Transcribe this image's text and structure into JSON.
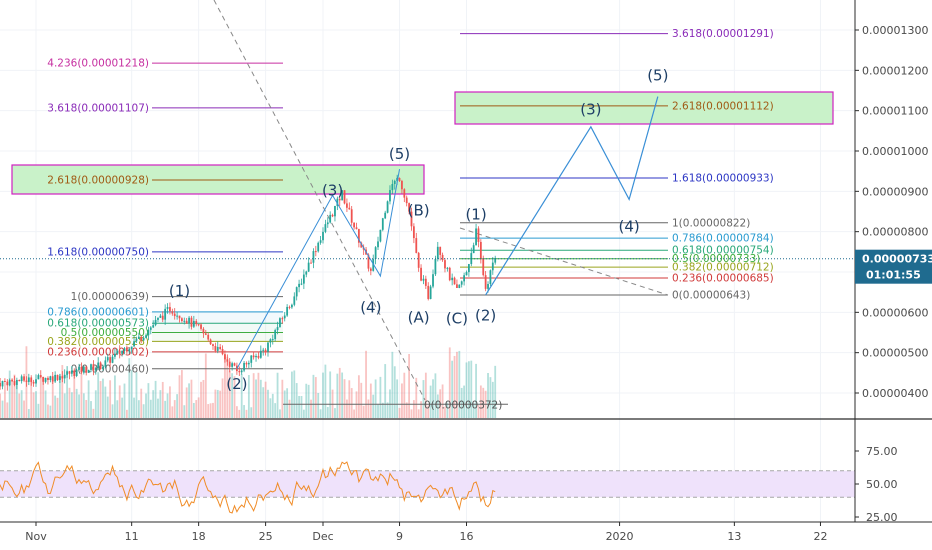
{
  "chart_data": {
    "type": "candlestick",
    "price_axis": {
      "ticks": [
        "0.00001300",
        "0.00001200",
        "0.00001100",
        "0.00001000",
        "0.00000900",
        "0.00000800",
        "0.00000700",
        "0.00000600",
        "0.00000500",
        "0.00000400"
      ],
      "tick_values": [
        1300,
        1200,
        1100,
        1000,
        900,
        800,
        700,
        600,
        500,
        400
      ],
      "current_price_label": "0.00000733",
      "current_price": 733,
      "countdown_label": "01:01:55"
    },
    "time_axis": {
      "labels": [
        "Nov",
        "11",
        "18",
        "25",
        "Dec",
        "9",
        "16",
        "2020",
        "13",
        "22"
      ],
      "dates": [
        "2019-11-01",
        "2019-11-11",
        "2019-11-18",
        "2019-11-25",
        "2019-12-01",
        "2019-12-09",
        "2019-12-16",
        "2020-01-01",
        "2020-01-13",
        "2020-01-22"
      ]
    },
    "rsi": {
      "ticks": [
        "75.00",
        "50.00",
        "25.00"
      ],
      "tick_values": [
        75,
        50,
        25
      ],
      "band": [
        40,
        60
      ]
    },
    "fib_left": [
      {
        "label": "4.236(0.00001218)",
        "value": 1218,
        "color": "#c62fa0"
      },
      {
        "label": "3.618(0.00001107)",
        "value": 1107,
        "color": "#8a2bb8"
      },
      {
        "label": "2.618(0.00000928)",
        "value": 928,
        "color": "#a05a14"
      },
      {
        "label": "1.618(0.00000750)",
        "value": 750,
        "color": "#2c36c4"
      }
    ],
    "fib_left_retrace": [
      {
        "label": "1(0.00000639)",
        "value": 639,
        "color": "#666666"
      },
      {
        "label": "0.786(0.00000601)",
        "value": 601,
        "color": "#2a9bd1"
      },
      {
        "label": "0.618(0.00000573)",
        "value": 573,
        "color": "#2aa87a"
      },
      {
        "label": "0.5(0.00000550)",
        "value": 550,
        "color": "#3fae3f"
      },
      {
        "label": "0.382(0.00000528)",
        "value": 528,
        "color": "#9aa51e"
      },
      {
        "label": "0.236(0.00000502)",
        "value": 502,
        "color": "#d03a3a"
      },
      {
        "label": "0(0.00000460)",
        "value": 460,
        "color": "#666666"
      }
    ],
    "fib_right": [
      {
        "label": "3.618(0.00001291)",
        "value": 1291,
        "color": "#8a2bb8"
      },
      {
        "label": "2.618(0.00001112)",
        "value": 1112,
        "color": "#a05a14"
      },
      {
        "label": "1.618(0.00000933)",
        "value": 933,
        "color": "#2c36c4"
      }
    ],
    "fib_right_retrace": [
      {
        "label": "1(0.00000822)",
        "value": 822,
        "color": "#666666"
      },
      {
        "label": "0.786(0.00000784)",
        "value": 784,
        "color": "#2a9bd1"
      },
      {
        "label": "0.618(0.00000754)",
        "value": 754,
        "color": "#2aa87a"
      },
      {
        "label": "0.5(0.00000733)",
        "value": 733,
        "color": "#3fae3f"
      },
      {
        "label": "0.382(0.00000712)",
        "value": 712,
        "color": "#9aa51e"
      },
      {
        "label": "0.236(0.00000685)",
        "value": 685,
        "color": "#d03a3a"
      },
      {
        "label": "0(0.00000643)",
        "value": 643,
        "color": "#666666"
      }
    ],
    "low_label": "0(0.00000372)",
    "low_value": 372,
    "wave_labels": [
      {
        "text": "(1)",
        "x": "2019-11-16",
        "y": 640
      },
      {
        "text": "(2)",
        "x": "2019-11-22",
        "y": 410
      },
      {
        "text": "(3)",
        "x": "2019-12-02",
        "y": 890
      },
      {
        "text": "(4)",
        "x": "2019-12-06",
        "y": 600
      },
      {
        "text": "(5)",
        "x": "2019-12-09",
        "y": 980
      },
      {
        "text": "(B)",
        "x": "2019-12-11",
        "y": 840
      },
      {
        "text": "(A)",
        "x": "2019-12-11",
        "y": 575
      },
      {
        "text": "(C)",
        "x": "2019-12-15",
        "y": 572
      },
      {
        "text": "(1)",
        "x": "2019-12-17",
        "y": 830
      },
      {
        "text": "(2)",
        "x": "2019-12-18",
        "y": 580
      },
      {
        "text": "(3)",
        "x": "2019-12-29",
        "y": 1090
      },
      {
        "text": "(4)",
        "x": "2020-01-02",
        "y": 800
      },
      {
        "text": "(5)",
        "x": "2020-01-05",
        "y": 1175
      }
    ],
    "projection_path": [
      {
        "x": "2019-12-18",
        "y": 643
      },
      {
        "x": "2019-12-29",
        "y": 1060
      },
      {
        "x": "2020-01-02",
        "y": 880
      },
      {
        "x": "2020-01-05",
        "y": 1135
      }
    ],
    "colors": {
      "up": "#26a69a",
      "down": "#ef5350",
      "wave_line": "#3a8fd6",
      "rsi": "#f08c28",
      "target_box_fill": "#c9f2c9",
      "target_box_border": "#d020c0",
      "price_tag": "#1f6b8f"
    }
  }
}
